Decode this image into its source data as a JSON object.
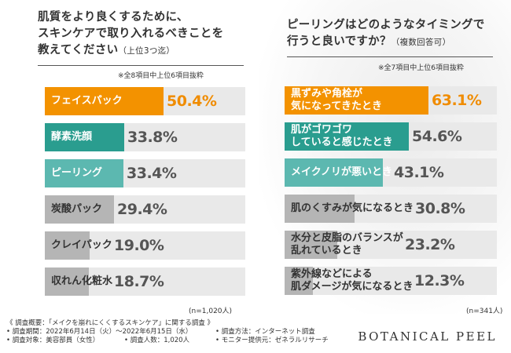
{
  "colors": {
    "orange": "#f39200",
    "teal": "#2a9d8f",
    "teal_light": "#5cb8b0",
    "gray": "#b5b5b5",
    "bar_bg": "#e9e9e9",
    "highlight_text": "#f08c00"
  },
  "chart_data": [
    {
      "type": "bar",
      "title_lines": [
        "肌質をより良くするために、",
        "スキンケアで取り入れるべきことを"
      ],
      "title_last": "教えてください",
      "title_sub": "（上位3つ迄）",
      "note": "※全8項目中上位6項目抜粋",
      "categories": [
        "フェイスパック",
        "酵素洗顔",
        "ピーリング",
        "炭酸パック",
        "クレイパック",
        "収れん化粧水"
      ],
      "values": [
        50.4,
        33.8,
        33.4,
        29.4,
        19.0,
        18.7
      ],
      "value_labels": [
        "50.4%",
        "33.8%",
        "33.4%",
        "29.4%",
        "19.0%",
        "18.7%"
      ],
      "n_label": "(n=1,020人)"
    },
    {
      "type": "bar",
      "title_lines": [
        "ピーリングはどのようなタイミングで"
      ],
      "title_last": "行うと良いですか？",
      "title_sub": "（複数回答可）",
      "note": "※全7項目中上位6項目抜粋",
      "categories": [
        [
          "黒ずみや角栓が",
          "気になってきたとき"
        ],
        [
          "肌がゴワゴワ",
          "していると感じたとき"
        ],
        [
          "メイクノリが悪いとき"
        ],
        [
          "肌のくすみが気になるとき"
        ],
        [
          "水分と皮脂のバランスが",
          "乱れているとき"
        ],
        [
          "紫外線などによる",
          "肌ダメージが気になるとき"
        ]
      ],
      "values": [
        63.1,
        54.6,
        43.1,
        30.8,
        23.2,
        12.3
      ],
      "value_labels": [
        "63.1%",
        "54.6%",
        "43.1%",
        "30.8%",
        "23.2%",
        "12.3%"
      ],
      "n_label": "(n=341人)"
    }
  ],
  "footer": {
    "heading": "《 調査概要：「メイクを崩れにくくするスキンケア」に関する調査 》",
    "period": "• 調査期間：2022年6月14日（火）～2022年6月15日（水）",
    "method": "• 調査方法：インターネット調査",
    "target": "• 調査対象：美容部員（女性）",
    "count": "• 調査人数：1,020人",
    "provider": "• モニター提供元：ゼネラルリサーチ"
  },
  "brand": "BOTANICAL PEEL"
}
